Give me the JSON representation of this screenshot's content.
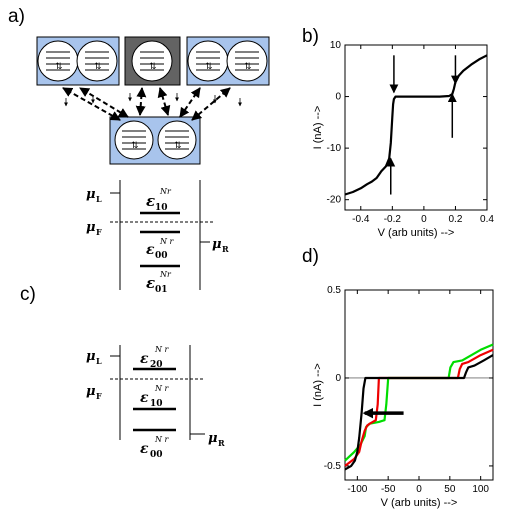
{
  "panels": {
    "a": "a)",
    "b": "b)",
    "c": "c)",
    "d": "d)"
  },
  "level_diagram_1": {
    "mu_left": "μ",
    "mu_left_sub": "L",
    "mu_fermi": "μ",
    "mu_fermi_sub": "F",
    "mu_right": "μ",
    "mu_right_sub": "R",
    "levels": [
      {
        "eps": "ε",
        "sub": "10",
        "sup": "Nr"
      },
      {
        "eps": "ε",
        "sub": "00",
        "sup": "N r"
      },
      {
        "eps": "ε",
        "sub": "01",
        "sup": "Nr"
      }
    ]
  },
  "level_diagram_2": {
    "mu_left": "μ",
    "mu_left_sub": "L",
    "mu_fermi": "μ",
    "mu_fermi_sub": "F",
    "mu_right": "μ",
    "mu_right_sub": "R",
    "levels": [
      {
        "eps": "ε",
        "sub": "20",
        "sup": "N r"
      },
      {
        "eps": "ε",
        "sub": "10",
        "sup": "N r"
      },
      {
        "eps": "ε",
        "sub": "00",
        "sup": "N r"
      }
    ]
  },
  "chart_data": [
    {
      "type": "line",
      "panel": "b)",
      "xlabel": "V (arb units) -->",
      "ylabel": "I (nA) -->",
      "xlim": [
        -0.5,
        0.4
      ],
      "ylim": [
        -22,
        10
      ],
      "x_ticks": [
        "-0.4",
        "-0.2",
        "0",
        "0.2",
        "0.4"
      ],
      "y_ticks": [
        "10",
        "0",
        "-10",
        "-20"
      ],
      "x_tick_values": [
        -0.4,
        -0.2,
        0,
        0.2,
        0.4
      ],
      "y_tick_values": [
        10,
        0,
        -10,
        -20
      ],
      "grid": false,
      "series": [
        {
          "color": "#000000",
          "x": [
            -0.5,
            -0.45,
            -0.4,
            -0.36,
            -0.33,
            -0.3,
            -0.27,
            -0.24,
            -0.22,
            -0.21,
            -0.2,
            -0.195,
            -0.19,
            -0.18,
            -0.15,
            -0.1,
            0,
            0.1,
            0.16,
            0.18,
            0.19,
            0.2,
            0.22,
            0.25,
            0.3,
            0.35,
            0.4
          ],
          "y": [
            -19,
            -18.5,
            -17.8,
            -17,
            -16.5,
            -15.8,
            -14.5,
            -13.5,
            -12,
            -9,
            -4,
            -1.5,
            -0.5,
            0,
            0,
            0,
            0,
            0,
            0.1,
            0.5,
            1.5,
            2.8,
            4,
            5,
            6.2,
            7.2,
            8
          ]
        }
      ],
      "annotations": [
        "arrow-down-left-step",
        "arrow-up-left-step",
        "arrow-down-right-step",
        "arrow-up-right-step"
      ]
    },
    {
      "type": "line",
      "panel": "d)",
      "xlabel": "V (arb units) -->",
      "ylabel": "I (nA) -->",
      "xlim": [
        -120,
        120
      ],
      "ylim": [
        -0.58,
        0.5
      ],
      "x_ticks": [
        "-100",
        "-50",
        "0",
        "50",
        "100"
      ],
      "y_ticks": [
        "0.5",
        "0",
        "-0.5"
      ],
      "x_tick_values": [
        -100,
        -50,
        0,
        50,
        100
      ],
      "y_tick_values": [
        0.5,
        0,
        -0.5
      ],
      "grid": false,
      "series": [
        {
          "color": "#00dd00",
          "x": [
            -120,
            -105,
            -95,
            -88,
            -86,
            -80,
            -65,
            -56,
            -53,
            -50,
            -40,
            0,
            40,
            48,
            51,
            56,
            70,
            100,
            120
          ],
          "y": [
            -0.47,
            -0.42,
            -0.38,
            -0.33,
            -0.28,
            -0.26,
            -0.25,
            -0.24,
            -0.15,
            0,
            0,
            0,
            0,
            0,
            0.06,
            0.09,
            0.1,
            0.16,
            0.19
          ]
        },
        {
          "color": "#ee0000",
          "x": [
            -120,
            -105,
            -97,
            -93,
            -88,
            -84,
            -80,
            -70,
            -67,
            -65,
            -50,
            0,
            55,
            63,
            66,
            70,
            80,
            100,
            120
          ],
          "y": [
            -0.5,
            -0.46,
            -0.42,
            -0.36,
            -0.3,
            -0.27,
            -0.26,
            -0.24,
            -0.15,
            0,
            0,
            0,
            0,
            0,
            0.05,
            0.08,
            0.09,
            0.13,
            0.16
          ]
        },
        {
          "color": "#000000",
          "x": [
            -120,
            -110,
            -104,
            -100,
            -97,
            -93,
            -90,
            -87,
            -85,
            -80,
            -60,
            0,
            65,
            73,
            76,
            80,
            90,
            105,
            120
          ],
          "y": [
            -0.52,
            -0.5,
            -0.47,
            -0.42,
            -0.34,
            -0.2,
            -0.06,
            0,
            0,
            0,
            0,
            0,
            0,
            0,
            0.03,
            0.06,
            0.07,
            0.1,
            0.13
          ]
        }
      ],
      "annotations": [
        "arrow-left-bold"
      ]
    }
  ]
}
